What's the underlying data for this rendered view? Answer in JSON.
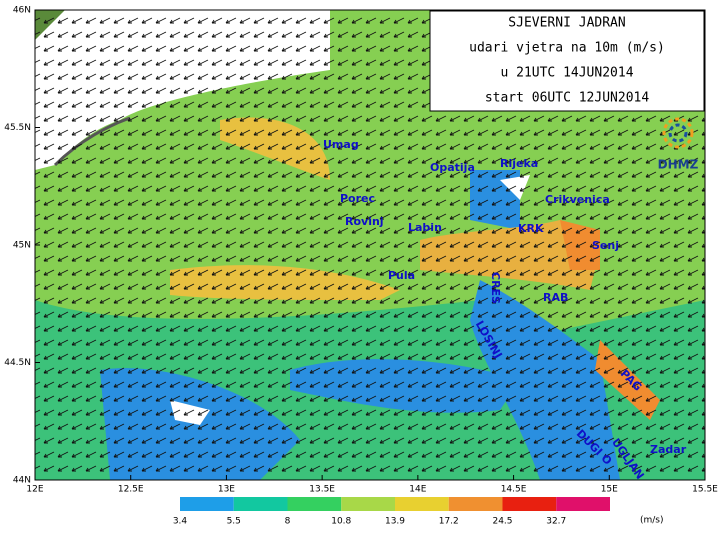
{
  "header": {
    "lines": [
      "SJEVERNI JADRAN",
      "udari vjetra na 10m (m/s)",
      "u 21UTC 14JUN2014",
      "start 06UTC 12JUN2014"
    ]
  },
  "logo": "DHMZ",
  "axes": {
    "lon": [
      "12E",
      "12.5E",
      "13E",
      "13.5E",
      "14E",
      "14.5E",
      "15E",
      "15.5E"
    ],
    "lat": [
      "46N",
      "45.5N",
      "45N",
      "44.5N",
      "44N"
    ]
  },
  "places": [
    {
      "label": "Umag"
    },
    {
      "label": "Porec"
    },
    {
      "label": "Rovinj"
    },
    {
      "label": "Pula"
    },
    {
      "label": "Labin"
    },
    {
      "label": "Opatija"
    },
    {
      "label": "Rijeka"
    },
    {
      "label": "Crikvenica"
    },
    {
      "label": "KRK"
    },
    {
      "label": "Senj"
    },
    {
      "label": "CRES"
    },
    {
      "label": "RAB"
    },
    {
      "label": "LOSINJ"
    },
    {
      "label": "PAG"
    },
    {
      "label": "DUGI O"
    },
    {
      "label": "UGLJAN"
    },
    {
      "label": "Zadar"
    }
  ],
  "legend": {
    "labels": [
      "3.4",
      "5.5",
      "8",
      "10.8",
      "13.9",
      "17.2",
      "24.5",
      "32.7"
    ],
    "unit": "(m/s)"
  }
}
